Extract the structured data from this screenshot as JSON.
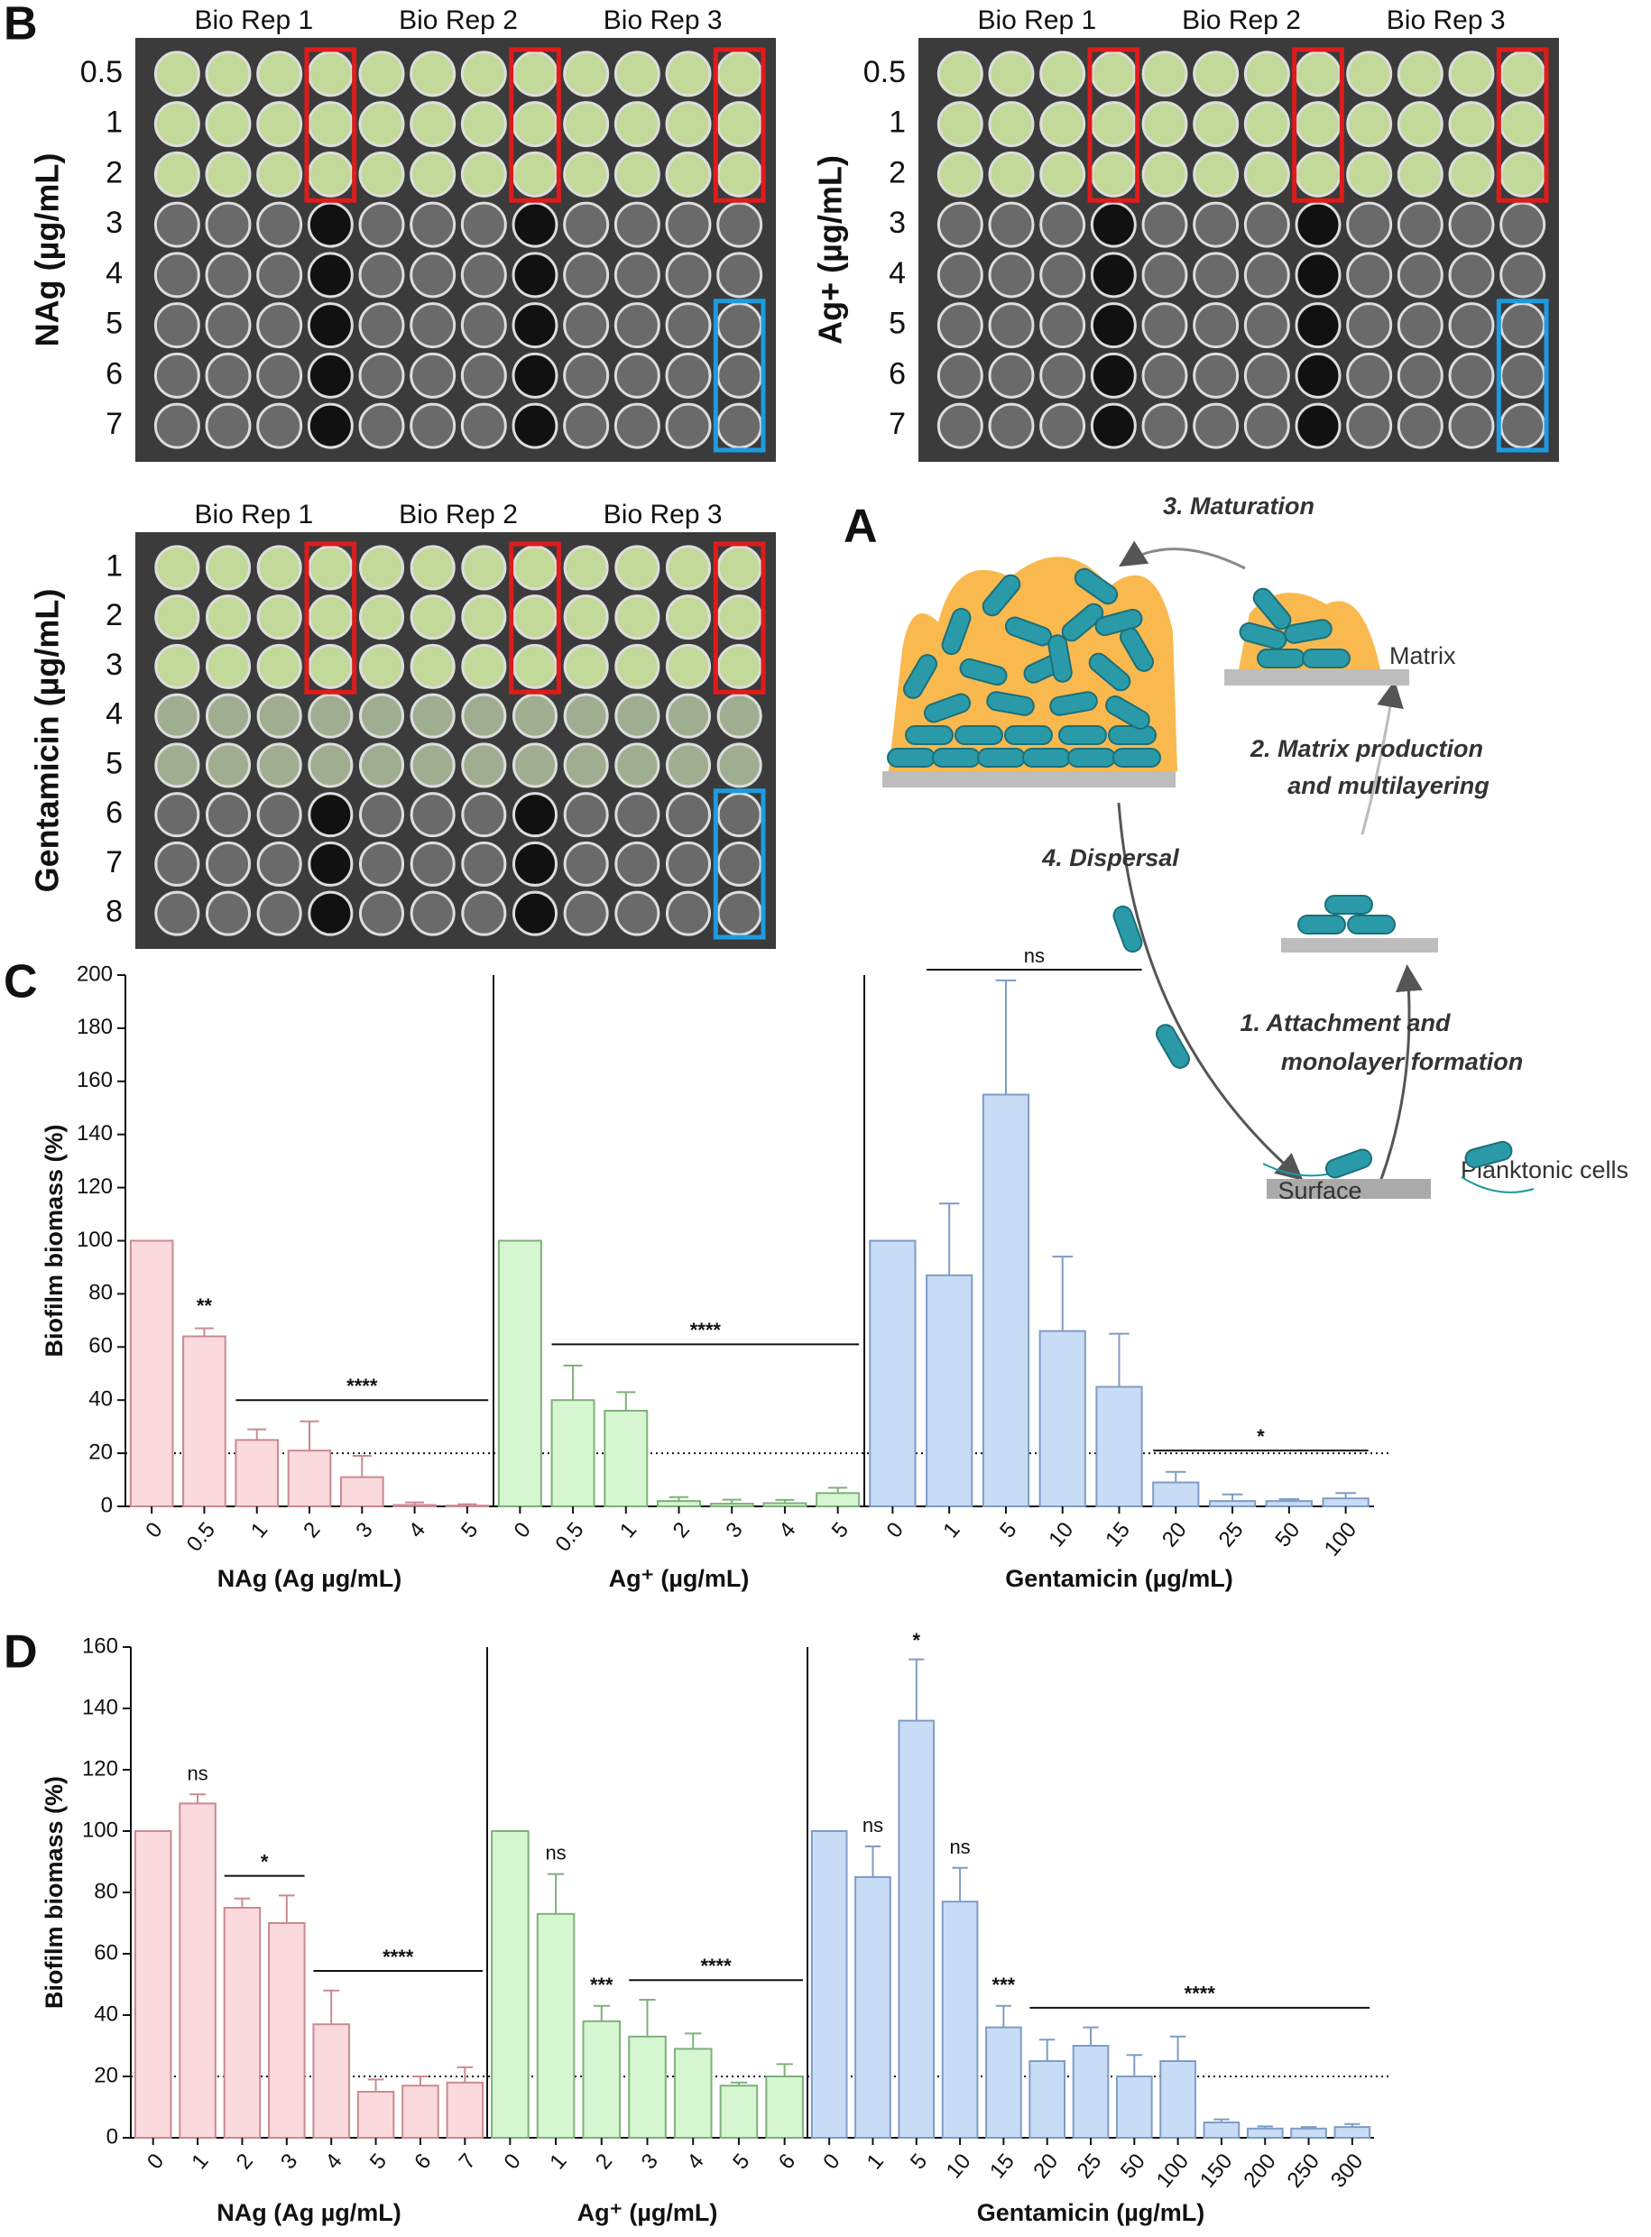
{
  "panel_labels": {
    "a": "A",
    "b": "B"
  },
  "plates": [
    {
      "ylabel": "NAg (µg/mL)",
      "columns": [
        "Bio Rep 1",
        "Bio Rep 2",
        "Bio Rep 3"
      ],
      "rows": [
        "0.5",
        "1",
        "2",
        "3",
        "4",
        "5",
        "6",
        "7"
      ]
    },
    {
      "ylabel": "Ag+ (µg/mL)",
      "columns": [
        "Bio Rep 1",
        "Bio Rep 2",
        "Bio Rep 3"
      ],
      "rows": [
        "0.5",
        "1",
        "2",
        "3",
        "4",
        "5",
        "6",
        "7"
      ]
    },
    {
      "ylabel": "Gentamicin (µg/mL)",
      "columns": [
        "Bio Rep 1",
        "Bio Rep 2",
        "Bio Rep 3"
      ],
      "rows": [
        "1",
        "2",
        "3",
        "4",
        "5",
        "6",
        "7",
        "8"
      ]
    }
  ],
  "diagram": {
    "maturation": "3. Maturation",
    "matrix": "Matrix",
    "matrix_production": [
      "2. Matrix production",
      "and multilayering"
    ],
    "dispersal": "4. Dispersal",
    "attachment": [
      "1. Attachment and",
      "monolayer formation"
    ],
    "surface": "Surface",
    "planktonic": "Planktonic cells"
  },
  "chart_data": [
    {
      "type": "bar",
      "panel_label": "C",
      "ylabel": "Biofilm biomass (%)",
      "ylim": [
        0,
        200
      ],
      "yticks": [
        0,
        20,
        40,
        60,
        80,
        100,
        120,
        140,
        160,
        180,
        200
      ],
      "threshold": 20,
      "groups": [
        {
          "xlabel": "NAg (Ag µg/mL)",
          "color": "#fbdadd",
          "edgecolor": "#c98a90",
          "categories": [
            "0",
            "0.5",
            "1",
            "2",
            "3",
            "4",
            "5"
          ],
          "values": [
            100,
            64,
            25,
            21,
            11,
            0.5,
            0.3
          ],
          "errors": [
            0,
            3,
            4,
            11,
            8,
            1,
            0.5
          ],
          "annotations": [
            {
              "text": "**",
              "start": 1,
              "end": 1
            },
            {
              "text": "****",
              "start": 2,
              "end": 6
            }
          ]
        },
        {
          "xlabel": "Ag⁺ (µg/mL)",
          "color": "#d5f6d0",
          "edgecolor": "#7fb07a",
          "categories": [
            "0",
            "0.5",
            "1",
            "2",
            "3",
            "4",
            "5"
          ],
          "values": [
            100,
            40,
            36,
            2,
            1,
            1.2,
            5
          ],
          "errors": [
            0,
            13,
            7,
            1.5,
            1.5,
            1.2,
            2
          ],
          "annotations": [
            {
              "text": "****",
              "start": 1,
              "end": 6
            }
          ]
        },
        {
          "xlabel": "Gentamicin (µg/mL)",
          "color": "#c9dcf5",
          "edgecolor": "#7f9cc4",
          "categories": [
            "0",
            "1",
            "5",
            "10",
            "15",
            "20",
            "25",
            "50",
            "100"
          ],
          "values": [
            100,
            87,
            155,
            66,
            45,
            9,
            2,
            2,
            3
          ],
          "errors": [
            0,
            27,
            43,
            28,
            20,
            4,
            2.5,
            0.7,
            2
          ],
          "annotations": [
            {
              "text": "ns",
              "start": 1,
              "end": 4
            },
            {
              "text": "*",
              "start": 5,
              "end": 8
            }
          ]
        }
      ]
    },
    {
      "type": "bar",
      "panel_label": "D",
      "ylabel": "Biofilm biomass (%)",
      "ylim": [
        0,
        160
      ],
      "yticks": [
        0,
        20,
        40,
        60,
        80,
        100,
        120,
        140,
        160
      ],
      "threshold": 20,
      "groups": [
        {
          "xlabel": "NAg (Ag µg/mL)",
          "color": "#fbdadd",
          "edgecolor": "#c98a90",
          "categories": [
            "0",
            "1",
            "2",
            "3",
            "4",
            "5",
            "6",
            "7"
          ],
          "values": [
            100,
            109,
            75,
            70,
            37,
            15,
            17,
            18
          ],
          "errors": [
            0,
            3,
            3,
            9,
            11,
            4,
            3,
            5
          ],
          "annotations": [
            {
              "text": "ns",
              "start": 1,
              "end": 1
            },
            {
              "text": "*",
              "start": 2,
              "end": 3
            },
            {
              "text": "****",
              "start": 4,
              "end": 7
            }
          ]
        },
        {
          "xlabel": "Ag⁺ (µg/mL)",
          "color": "#d5f6d0",
          "edgecolor": "#7fb07a",
          "categories": [
            "0",
            "1",
            "2",
            "3",
            "4",
            "5",
            "6"
          ],
          "values": [
            100,
            73,
            38,
            33,
            29,
            17,
            20
          ],
          "errors": [
            0,
            13,
            5,
            12,
            5,
            1,
            4
          ],
          "annotations": [
            {
              "text": "ns",
              "start": 1,
              "end": 1
            },
            {
              "text": "***",
              "start": 2,
              "end": 2
            },
            {
              "text": "****",
              "start": 3,
              "end": 6
            }
          ]
        },
        {
          "xlabel": "Gentamicin (µg/mL)",
          "color": "#c9dcf5",
          "edgecolor": "#7f9cc4",
          "categories": [
            "0",
            "1",
            "5",
            "10",
            "15",
            "20",
            "25",
            "50",
            "100",
            "150",
            "200",
            "250",
            "300"
          ],
          "values": [
            100,
            85,
            136,
            77,
            36,
            25,
            30,
            20,
            25,
            5,
            3,
            3,
            3.5
          ],
          "errors": [
            0,
            10,
            20,
            11,
            7,
            7,
            6,
            7,
            8,
            1,
            0.7,
            0.5,
            1
          ],
          "annotations": [
            {
              "text": "ns",
              "start": 1,
              "end": 1
            },
            {
              "text": "*",
              "start": 2,
              "end": 2
            },
            {
              "text": "ns",
              "start": 3,
              "end": 3
            },
            {
              "text": "***",
              "start": 4,
              "end": 4
            },
            {
              "text": "****",
              "start": 5,
              "end": 12
            }
          ]
        }
      ]
    }
  ]
}
